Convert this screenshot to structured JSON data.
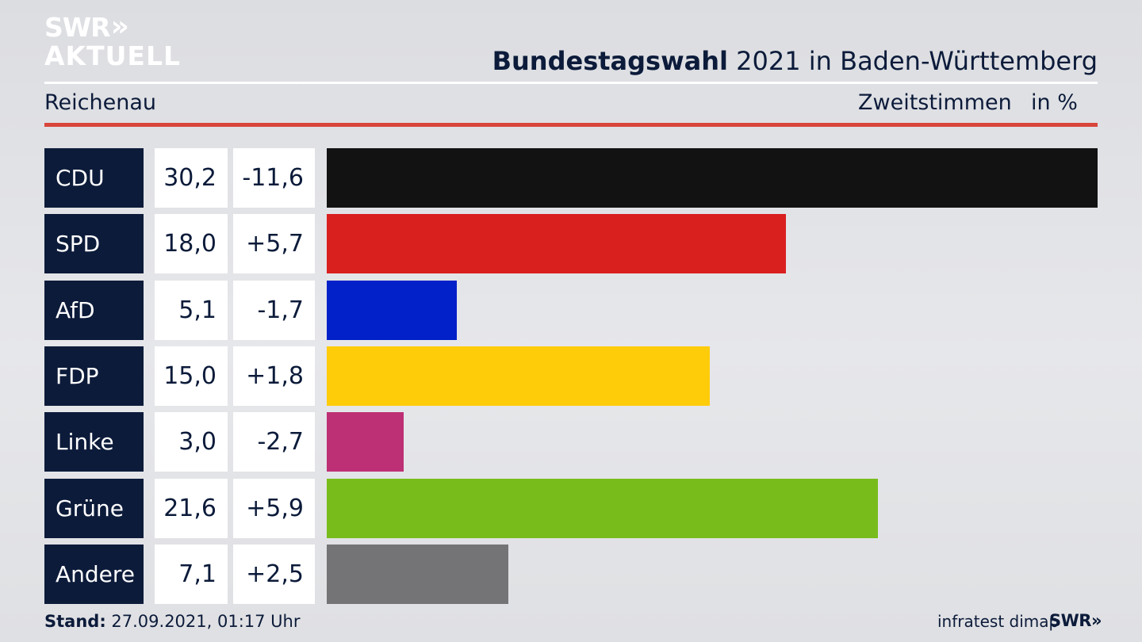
{
  "logo": {
    "line1": "SWR",
    "chevrons": "»",
    "line2": "AKTUELL"
  },
  "header": {
    "title_bold": "Bundestagswahl",
    "title_rest": " 2021 in Baden-Württemberg",
    "region": "Reichenau",
    "metric": "Zweitstimmen",
    "unit": "in %"
  },
  "chart_data": {
    "type": "bar",
    "orientation": "horizontal",
    "categories": [
      "CDU",
      "SPD",
      "AfD",
      "FDP",
      "Linke",
      "Grüne",
      "Andere"
    ],
    "values": [
      30.2,
      18.0,
      5.1,
      15.0,
      3.0,
      21.6,
      7.1
    ],
    "value_labels": [
      "30,2",
      "18,0",
      "5,1",
      "15,0",
      "3,0",
      "21,6",
      "7,1"
    ],
    "change_labels": [
      "-11,6",
      "+5,7",
      "-1,7",
      "+1,8",
      "-2,7",
      "+5,9",
      "+2,5"
    ],
    "colors": [
      "#121212",
      "#d9201f",
      "#0221c8",
      "#ffcc0a",
      "#be3075",
      "#78bc1b",
      "#747476"
    ],
    "xlim": [
      0,
      30.2
    ],
    "grid": false,
    "legend": "none"
  },
  "footer": {
    "stand_label": "Stand:",
    "stand_value": " 27.09.2021, 01:17 Uhr",
    "source": "infratest dimap",
    "brand": "SWR",
    "brand_chevrons": "»"
  }
}
